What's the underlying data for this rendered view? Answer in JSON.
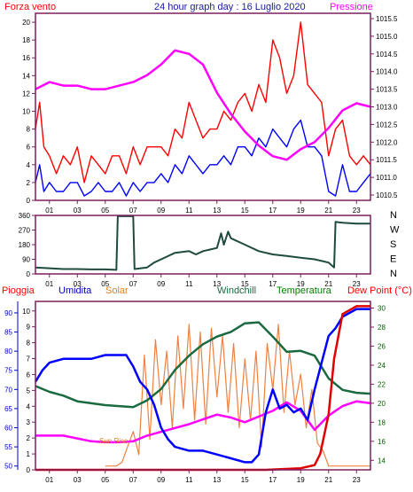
{
  "chart_data": [
    {
      "id": "wind-pressure",
      "type": "line",
      "title": "24 hour graph day : 16 Luglio 2020",
      "left_label": "Forza vento",
      "right_label": "Pressione",
      "x_ticks": [
        "01",
        "03",
        "05",
        "07",
        "09",
        "11",
        "13",
        "15",
        "17",
        "19",
        "21",
        "23"
      ],
      "xlim": [
        0,
        24
      ],
      "y_left_ticks": [
        0,
        2,
        4,
        6,
        8,
        10,
        12,
        14,
        16,
        18,
        20
      ],
      "y_left_lim": [
        0,
        21
      ],
      "y_right_ticks": [
        1010.5,
        1011,
        1011.5,
        1012,
        1012.5,
        1013,
        1013.5,
        1014,
        1014.5,
        1015,
        1015.5
      ],
      "y_right_lim": [
        1010.35,
        1015.65
      ],
      "series": [
        {
          "role": "gust",
          "axis": "left",
          "color": "#ff0000",
          "x": [
            0,
            0.3,
            0.6,
            1,
            1.5,
            2,
            2.5,
            3,
            3.5,
            4,
            4.5,
            5,
            5.5,
            6,
            6.5,
            7,
            7.5,
            8,
            8.5,
            9,
            9.5,
            10,
            10.5,
            11,
            11.5,
            12,
            12.5,
            13,
            13.5,
            14,
            14.5,
            15,
            15.5,
            16,
            16.5,
            17,
            17.5,
            18,
            18.5,
            19,
            19.5,
            20,
            20.5,
            21,
            21.5,
            22,
            22.5,
            23,
            23.5,
            24
          ],
          "values": [
            8,
            11,
            6,
            5,
            3,
            5,
            4,
            6,
            2,
            5,
            4,
            3,
            5,
            5,
            3,
            6,
            4,
            6,
            6,
            6,
            5,
            8,
            7,
            11,
            9,
            7,
            8,
            8,
            10,
            9,
            11,
            12,
            10,
            13,
            11,
            18,
            16,
            12,
            14,
            20,
            13,
            12,
            11,
            5,
            8,
            9,
            5,
            4,
            5,
            4
          ]
        },
        {
          "role": "wind-speed",
          "axis": "left",
          "color": "#0000ff",
          "x": [
            0,
            0.3,
            0.6,
            1,
            1.5,
            2,
            2.5,
            3,
            3.5,
            4,
            4.5,
            5,
            5.5,
            6,
            6.5,
            7,
            7.5,
            8,
            8.5,
            9,
            9.5,
            10,
            10.5,
            11,
            11.5,
            12,
            12.5,
            13,
            13.5,
            14,
            14.5,
            15,
            15.5,
            16,
            16.5,
            17,
            17.5,
            18,
            18.5,
            19,
            19.5,
            20,
            20.5,
            21,
            21.5,
            22,
            22.5,
            23,
            23.5,
            24
          ],
          "values": [
            2,
            4,
            1,
            2,
            1,
            1,
            2,
            2,
            0.5,
            1,
            2,
            1,
            1,
            2,
            0.5,
            2,
            1,
            2,
            2,
            3,
            2,
            4,
            3,
            5,
            4,
            3,
            4,
            4,
            5,
            4,
            6,
            6,
            5,
            7,
            6,
            8,
            7,
            6,
            8,
            9,
            6,
            6,
            5,
            1,
            0.5,
            4,
            1,
            1,
            2,
            3
          ]
        },
        {
          "role": "pressure",
          "axis": "right",
          "color": "#ff00ff",
          "x": [
            0,
            1,
            2,
            3,
            4,
            5,
            6,
            7,
            8,
            9,
            10,
            11,
            12,
            13,
            14,
            15,
            16,
            17,
            18,
            19,
            20,
            21,
            22,
            23,
            24
          ],
          "values": [
            1013.5,
            1013.7,
            1013.6,
            1013.6,
            1013.5,
            1013.5,
            1013.6,
            1013.7,
            1013.9,
            1014.2,
            1014.6,
            1014.5,
            1014.2,
            1013.4,
            1012.8,
            1012.3,
            1011.9,
            1011.6,
            1011.5,
            1011.8,
            1012,
            1012.4,
            1012.9,
            1013.1,
            1013
          ]
        }
      ]
    },
    {
      "id": "wind-direction",
      "type": "line",
      "x_ticks": [
        "01",
        "03",
        "05",
        "07",
        "09",
        "11",
        "13",
        "15",
        "17",
        "19",
        "21",
        "23"
      ],
      "xlim": [
        0,
        24
      ],
      "y_ticks": [
        0,
        90,
        180,
        270,
        360
      ],
      "ylim": [
        0,
        360
      ],
      "compass_labels": [
        "N",
        "W",
        "S",
        "E",
        "N"
      ],
      "series": [
        {
          "role": "direction",
          "color": "#1f4a3f",
          "x": [
            0,
            1,
            2,
            3,
            4,
            5,
            5.8,
            5.9,
            7,
            7.1,
            8,
            8.5,
            9,
            10,
            11,
            11.5,
            12,
            12.5,
            13,
            13.3,
            13.5,
            13.8,
            14,
            15,
            16,
            17,
            18,
            19,
            20,
            21,
            21.4,
            21.5,
            22,
            23,
            24
          ],
          "values": [
            40,
            35,
            30,
            30,
            28,
            28,
            25,
            355,
            355,
            30,
            40,
            70,
            90,
            130,
            140,
            120,
            140,
            150,
            160,
            250,
            180,
            260,
            220,
            180,
            140,
            120,
            110,
            100,
            90,
            70,
            40,
            320,
            315,
            310,
            310
          ]
        }
      ]
    },
    {
      "id": "temperature-humidity",
      "type": "line",
      "legend": [
        "Pioggia",
        "Umidita",
        "Solar",
        "Windchill",
        "Temperatura",
        "Dew Point (°C)"
      ],
      "annotation": "Sun Rise",
      "x_ticks": [
        "01",
        "03",
        "05",
        "07",
        "09",
        "11",
        "13",
        "15",
        "17",
        "19",
        "21",
        "23"
      ],
      "xlim": [
        0,
        24
      ],
      "rain_ticks": [
        0,
        1,
        2,
        3,
        4,
        5,
        6,
        7,
        8,
        9,
        10
      ],
      "rain_lim": [
        0,
        10.6
      ],
      "humidity_ticks": [
        50,
        55,
        60,
        65,
        70,
        75,
        80,
        85,
        90
      ],
      "humidity_lim": [
        49,
        93
      ],
      "temp_ticks": [
        14,
        16,
        18,
        20,
        22,
        24,
        26,
        28,
        30
      ],
      "temp_lim": [
        13,
        30.7
      ],
      "series": [
        {
          "role": "rain",
          "axis": "rain",
          "color": "#e00000",
          "x": [
            0,
            5,
            10,
            15,
            16.5,
            19,
            20,
            20.4,
            21,
            21.4,
            22,
            23,
            24
          ],
          "values": [
            0,
            0,
            0,
            0,
            0,
            0.1,
            0.3,
            1,
            3.5,
            7,
            9.8,
            10.3,
            10.3
          ]
        },
        {
          "role": "humidity",
          "axis": "humidity",
          "color": "#0000ff",
          "x": [
            0,
            0.5,
            1,
            2,
            3,
            4,
            5,
            6,
            6.5,
            7,
            7.5,
            8,
            8.5,
            9,
            9.5,
            10,
            11,
            12,
            13,
            14,
            15,
            15.5,
            16,
            16.5,
            17,
            17.5,
            18,
            18.5,
            19,
            19.5,
            20,
            20.5,
            21,
            21.5,
            22,
            23,
            24
          ],
          "values": [
            72,
            75,
            77,
            78,
            78,
            78,
            79,
            79,
            79,
            76,
            72,
            70,
            66,
            60,
            57,
            55,
            54,
            54,
            53,
            52,
            51,
            51,
            53,
            64,
            70,
            65,
            66,
            64,
            65,
            62,
            70,
            77,
            84,
            86,
            89,
            91,
            91
          ]
        },
        {
          "role": "solar",
          "axis": "humidity",
          "color": "#f08040",
          "x": [
            5,
            5.4,
            5.8,
            6.2,
            6.6,
            7,
            7.4,
            7.8,
            8.2,
            8.6,
            9,
            9.4,
            9.8,
            10.2,
            10.6,
            11,
            11.4,
            11.8,
            12.2,
            12.6,
            13,
            13.4,
            13.8,
            14.2,
            14.6,
            15,
            15.4,
            15.8,
            16.2,
            16.6,
            17,
            17.4,
            17.8,
            18.2,
            18.6,
            19,
            19.4,
            19.8,
            20.2,
            20.6,
            21,
            24
          ],
          "values": [
            50,
            50,
            50,
            51,
            55,
            59,
            53,
            79,
            57,
            83,
            66,
            80,
            60,
            84,
            65,
            87,
            62,
            85,
            61,
            86,
            68,
            84,
            64,
            82,
            60,
            78,
            62,
            80,
            55,
            82,
            70,
            87,
            64,
            80,
            66,
            74,
            60,
            70,
            56,
            54,
            50,
            50
          ]
        },
        {
          "role": "windchill",
          "axis": "temp",
          "color": "#1a6a40",
          "x": [
            0,
            1,
            2,
            3,
            4,
            5,
            6,
            7,
            8,
            9,
            10,
            11,
            12,
            13,
            14,
            15,
            16,
            17,
            18,
            19,
            20,
            21,
            22,
            23,
            24
          ],
          "values": [
            21.8,
            21.2,
            20.8,
            20.2,
            20,
            19.8,
            19.7,
            19.6,
            20.3,
            21.5,
            23.5,
            25,
            26.2,
            27,
            27.5,
            28.4,
            28.5,
            27,
            25.4,
            25.5,
            25,
            22.6,
            21.4,
            21.1,
            21
          ]
        },
        {
          "role": "dew-point",
          "axis": "temp",
          "color": "#ff00ff",
          "x": [
            0,
            1,
            2,
            3,
            4,
            5,
            6,
            7,
            8,
            9,
            10,
            11,
            12,
            13,
            14,
            15,
            16,
            17,
            18,
            19,
            20,
            21,
            22,
            23,
            24
          ],
          "values": [
            16.6,
            16.6,
            16.6,
            16.3,
            16,
            15.9,
            15.9,
            16,
            16.6,
            17,
            17.4,
            17.8,
            18.3,
            18.8,
            18.5,
            18,
            18.6,
            19.2,
            20.1,
            19.2,
            17.2,
            18.7,
            19.7,
            20.2,
            20
          ]
        }
      ]
    }
  ],
  "colors": {
    "axis": "#7e1f5e",
    "title": "#1a1aa0"
  }
}
